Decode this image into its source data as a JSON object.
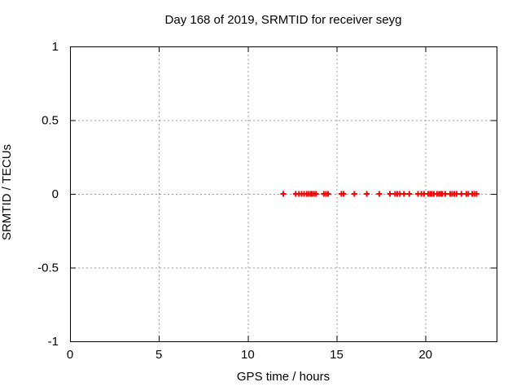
{
  "window": {
    "background": "#ffffff"
  },
  "chart_data": {
    "type": "scatter",
    "title": "Day 168 of 2019, SRMTID for receiver seyg",
    "xlabel": "GPS time / hours",
    "ylabel": "SRMTID / TECUs",
    "xlim": [
      0,
      24
    ],
    "ylim": [
      -1,
      1
    ],
    "x_ticks": [
      0,
      5,
      10,
      15,
      20
    ],
    "y_ticks": [
      -1,
      -0.5,
      0,
      0.5,
      1
    ],
    "grid": true,
    "grid_style": "dashed",
    "legend_position": "none",
    "marker": "plus",
    "colors": {
      "marker": "#ff0000",
      "grid": "#9a9a9a",
      "axis": "#000000",
      "text": "#000000"
    },
    "series": [
      {
        "name": "SRMTID",
        "x": [
          12.0,
          12.7,
          12.88,
          13.03,
          13.17,
          13.32,
          13.43,
          13.54,
          13.62,
          13.73,
          13.84,
          14.28,
          14.4,
          14.52,
          15.27,
          15.39,
          16.0,
          16.7,
          17.4,
          18.0,
          18.29,
          18.41,
          18.56,
          18.79,
          19.09,
          19.58,
          19.77,
          19.92,
          20.15,
          20.26,
          20.35,
          20.47,
          20.65,
          20.76,
          20.86,
          20.95,
          21.11,
          21.39,
          21.5,
          21.62,
          21.75,
          22.02,
          22.3,
          22.41,
          22.63,
          22.75,
          22.87
        ],
        "y": [
          0,
          0,
          0,
          0,
          0,
          0,
          0,
          0,
          0,
          0,
          0,
          0,
          0,
          0,
          0,
          0,
          0,
          0,
          0,
          0,
          0,
          0,
          0,
          0,
          0,
          0,
          0,
          0,
          0,
          0,
          0,
          0,
          0,
          0,
          0,
          0,
          0,
          0,
          0,
          0,
          0,
          0,
          0,
          0,
          0,
          0,
          0
        ]
      }
    ]
  }
}
